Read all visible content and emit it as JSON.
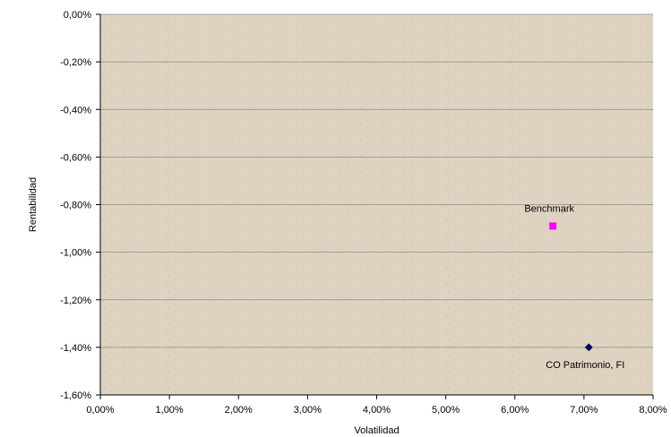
{
  "chart_data": {
    "type": "scatter",
    "title": "",
    "xlabel": "Volatilidad",
    "ylabel": "Rentabilidad",
    "xlim": [
      0,
      8
    ],
    "ylim": [
      -1.6,
      0
    ],
    "xticks": [
      0,
      1,
      2,
      3,
      4,
      5,
      6,
      7,
      8
    ],
    "yticks": [
      0,
      -0.2,
      -0.4,
      -0.6,
      -0.8,
      -1.0,
      -1.2,
      -1.4,
      -1.6
    ],
    "xtick_labels": [
      "0,00%",
      "1,00%",
      "2,00%",
      "3,00%",
      "4,00%",
      "5,00%",
      "6,00%",
      "7,00%",
      "8,00%"
    ],
    "ytick_labels": [
      "0,00%",
      "-0,20%",
      "-0,40%",
      "-0,60%",
      "-0,80%",
      "-1,00%",
      "-1,20%",
      "-1,40%",
      "-1,60%"
    ],
    "grid": "horizontal",
    "plot_background": "#ddd3c0",
    "points": [
      {
        "label": "Benchmark",
        "x": 6.55,
        "y": -0.89,
        "marker": "square",
        "color": "#ff00ff",
        "label_position": "above"
      },
      {
        "label": "CO Patrimonio, FI",
        "x": 7.07,
        "y": -1.4,
        "marker": "diamond",
        "color": "#000080",
        "label_position": "below"
      }
    ]
  }
}
